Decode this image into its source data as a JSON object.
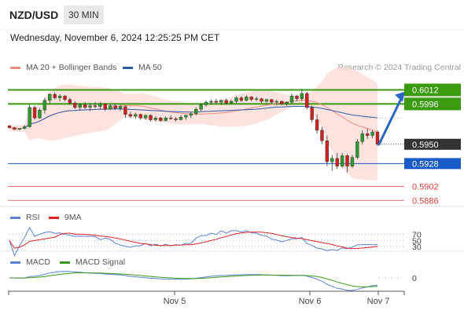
{
  "header": {
    "symbol": "NZD/USD",
    "timeframe": "30 MIN"
  },
  "date_line": "Wednesday, November 6, 2024 12:25:25 PM CET",
  "legend": {
    "ma20": {
      "label": "MA 20 + Bollinger Bands",
      "color": "#f08a80"
    },
    "ma50": {
      "label": "MA 50",
      "color": "#2a5caa"
    }
  },
  "credit": "Research © 2024 Trading Central",
  "rsi_legend": {
    "rsi": {
      "label": "RSI",
      "color": "#5b82d6"
    },
    "ma": {
      "label": "9MA",
      "color": "#e02424"
    }
  },
  "macd_legend": {
    "macd": {
      "label": "MACD",
      "color": "#5b82d6"
    },
    "signal": {
      "label": "MACD Signal",
      "color": "#3a9a1a"
    }
  },
  "levels": [
    {
      "label": "0.6012",
      "value": 0.6012,
      "type": "resistance",
      "color": "#3a9a10"
    },
    {
      "label": "0.5996",
      "value": 0.5996,
      "type": "resistance",
      "color": "#3a9a10"
    },
    {
      "label": "0.5950",
      "value": 0.595,
      "type": "last",
      "color": "#333333"
    },
    {
      "label": "0.5928",
      "value": 0.5928,
      "type": "pivot",
      "color": "#1a5ac8"
    },
    {
      "label": "0.5902",
      "value": 0.5902,
      "type": "support",
      "color": "#e23c3c"
    },
    {
      "label": "0.5886",
      "value": 0.5886,
      "type": "support",
      "color": "#e23c3c"
    }
  ],
  "rsi_levels": [
    "70",
    "50",
    "30"
  ],
  "macd_zero": "0",
  "x_labels": [
    "Nov 5",
    "Nov 6",
    "Nov 7"
  ],
  "chart_data": {
    "type": "candlestick",
    "instrument": "NZD/USD",
    "interval": "30 MIN",
    "price_range": [
      0.588,
      0.6025
    ],
    "candles_ohlc": [
      [
        0.5971,
        0.5972,
        0.5968,
        0.5969
      ],
      [
        0.5969,
        0.597,
        0.5966,
        0.5967
      ],
      [
        0.5967,
        0.5968,
        0.5966,
        0.5968
      ],
      [
        0.5968,
        0.5972,
        0.5967,
        0.597
      ],
      [
        0.597,
        0.5995,
        0.5969,
        0.5992
      ],
      [
        0.5992,
        0.5994,
        0.5978,
        0.598
      ],
      [
        0.598,
        0.5991,
        0.5979,
        0.5989
      ],
      [
        0.5989,
        0.6003,
        0.5985,
        0.6
      ],
      [
        0.6,
        0.6008,
        0.5996,
        0.6007
      ],
      [
        0.6007,
        0.6009,
        0.6001,
        0.6003
      ],
      [
        0.6003,
        0.6007,
        0.5999,
        0.6005
      ],
      [
        0.6005,
        0.6006,
        0.5999,
        0.6001
      ],
      [
        0.6001,
        0.6003,
        0.5995,
        0.5997
      ],
      [
        0.5997,
        0.5999,
        0.599,
        0.5992
      ],
      [
        0.5992,
        0.5997,
        0.5989,
        0.5995
      ],
      [
        0.5995,
        0.5998,
        0.599,
        0.5992
      ],
      [
        0.5992,
        0.5997,
        0.5988,
        0.5994
      ],
      [
        0.5994,
        0.5998,
        0.5991,
        0.5993
      ],
      [
        0.5993,
        0.5998,
        0.599,
        0.5996
      ],
      [
        0.5996,
        0.5997,
        0.5988,
        0.599
      ],
      [
        0.599,
        0.5996,
        0.5989,
        0.5994
      ],
      [
        0.5994,
        0.5996,
        0.5989,
        0.5991
      ],
      [
        0.5991,
        0.5995,
        0.5988,
        0.5993
      ],
      [
        0.5993,
        0.5994,
        0.598,
        0.5984
      ],
      [
        0.5984,
        0.5987,
        0.598,
        0.5982
      ],
      [
        0.5982,
        0.5986,
        0.5979,
        0.5984
      ],
      [
        0.5984,
        0.5985,
        0.5978,
        0.598
      ],
      [
        0.598,
        0.5984,
        0.5978,
        0.5983
      ],
      [
        0.5983,
        0.5984,
        0.5976,
        0.5978
      ],
      [
        0.5978,
        0.5982,
        0.5976,
        0.598
      ],
      [
        0.598,
        0.5981,
        0.5976,
        0.5977
      ],
      [
        0.5977,
        0.5982,
        0.5976,
        0.598
      ],
      [
        0.598,
        0.5983,
        0.5978,
        0.5979
      ],
      [
        0.5979,
        0.5981,
        0.5976,
        0.5978
      ],
      [
        0.5978,
        0.5983,
        0.5977,
        0.5981
      ],
      [
        0.5981,
        0.5984,
        0.5978,
        0.5983
      ],
      [
        0.5983,
        0.5987,
        0.598,
        0.5985
      ],
      [
        0.5985,
        0.5992,
        0.5983,
        0.599
      ],
      [
        0.599,
        0.5997,
        0.5988,
        0.5995
      ],
      [
        0.5995,
        0.6,
        0.5993,
        0.5998
      ],
      [
        0.5998,
        0.6001,
        0.5995,
        0.5999
      ],
      [
        0.5999,
        0.6002,
        0.5996,
        0.5998
      ],
      [
        0.5998,
        0.6001,
        0.5995,
        0.6
      ],
      [
        0.6,
        0.6002,
        0.5995,
        0.5997
      ],
      [
        0.5997,
        0.6001,
        0.5996,
        0.5999
      ],
      [
        0.5999,
        0.6005,
        0.5997,
        0.6003
      ],
      [
        0.6003,
        0.6005,
        0.5998,
        0.6
      ],
      [
        0.6,
        0.6006,
        0.5999,
        0.6004
      ],
      [
        0.6004,
        0.6005,
        0.5999,
        0.6001
      ],
      [
        0.6001,
        0.6004,
        0.5999,
        0.6002
      ],
      [
        0.6002,
        0.6003,
        0.5997,
        0.5999
      ],
      [
        0.5999,
        0.6002,
        0.5997,
        0.6001
      ],
      [
        0.6001,
        0.6002,
        0.5996,
        0.5998
      ],
      [
        0.5998,
        0.6001,
        0.5995,
        0.5999
      ],
      [
        0.5999,
        0.6,
        0.5995,
        0.5996
      ],
      [
        0.5996,
        0.5999,
        0.5994,
        0.5998
      ],
      [
        0.5998,
        0.6008,
        0.5996,
        0.6005
      ],
      [
        0.6005,
        0.6006,
        0.5999,
        0.6002
      ],
      [
        0.6002,
        0.6013,
        0.5999,
        0.6008
      ],
      [
        0.6008,
        0.601,
        0.599,
        0.5992
      ],
      [
        0.5992,
        0.5994,
        0.5975,
        0.5978
      ],
      [
        0.5978,
        0.5984,
        0.5962,
        0.5966
      ],
      [
        0.5966,
        0.597,
        0.595,
        0.5954
      ],
      [
        0.5954,
        0.596,
        0.5925,
        0.593
      ],
      [
        0.593,
        0.5938,
        0.592,
        0.5934
      ],
      [
        0.5934,
        0.594,
        0.5922,
        0.5925
      ],
      [
        0.5925,
        0.594,
        0.5923,
        0.5937
      ],
      [
        0.5937,
        0.5939,
        0.5918,
        0.5925
      ],
      [
        0.5925,
        0.5938,
        0.5923,
        0.5935
      ],
      [
        0.5935,
        0.5956,
        0.5933,
        0.5953
      ],
      [
        0.5953,
        0.5966,
        0.595,
        0.5962
      ],
      [
        0.5962,
        0.5968,
        0.5956,
        0.596
      ],
      [
        0.596,
        0.5966,
        0.5957,
        0.5964
      ],
      [
        0.5964,
        0.5966,
        0.5948,
        0.595
      ]
    ],
    "projection": {
      "from": 0.595,
      "to": 0.601
    }
  }
}
